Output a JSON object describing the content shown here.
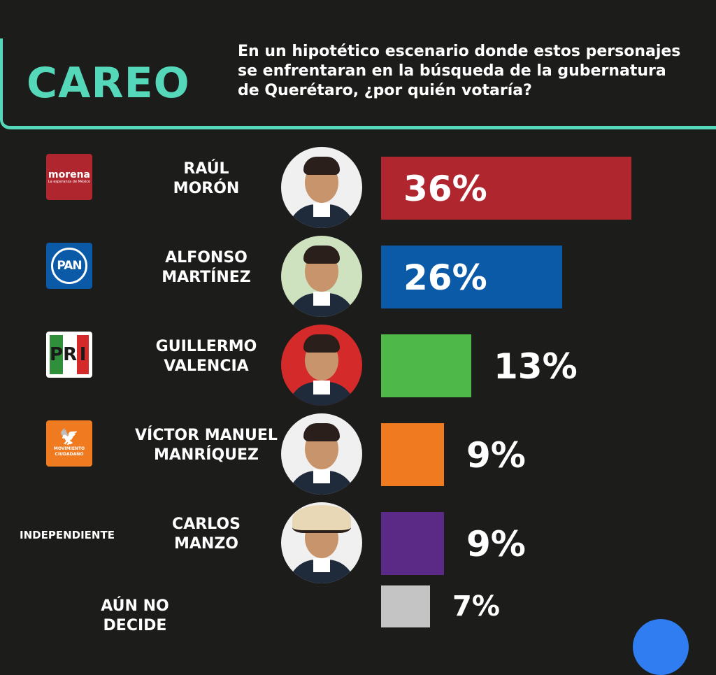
{
  "header": {
    "brand": "CAREO",
    "question": "En un hipotético escenario donde estos personajes se enfrentaran en la búsqueda de la gubernatura de Querétaro, ¿por quién votaría?"
  },
  "logos": {
    "morena_name": "morena",
    "morena_tagline": "La esperanza de México",
    "pan": "PAN",
    "pri_letters": [
      "P",
      "R",
      "I"
    ],
    "mc": "MOVIMIENTO CIUDADANO"
  },
  "chart_data": {
    "type": "bar",
    "orientation": "horizontal",
    "categories": [
      "RAÚL MORÓN",
      "ALFONSO MARTÍNEZ",
      "GUILLERMO VALENCIA",
      "VÍCTOR MANUEL MANRÍQUEZ",
      "CARLOS MANZO",
      "AÚN NO DECIDE"
    ],
    "values": [
      36,
      26,
      13,
      9,
      9,
      7
    ],
    "labels": [
      "36%",
      "26%",
      "13%",
      "9%",
      "9%",
      "7%"
    ],
    "name_lines": [
      [
        "RAÚL",
        "MORÓN"
      ],
      [
        "ALFONSO",
        "MARTÍNEZ"
      ],
      [
        "GUILLERMO",
        "VALENCIA"
      ],
      [
        "VÍCTOR MANUEL",
        "MANRÍQUEZ"
      ],
      [
        "CARLOS",
        "MANZO"
      ],
      [
        "AÚN NO",
        "DECIDE"
      ]
    ],
    "parties": [
      "MORENA",
      "PAN",
      "PRI",
      "MC",
      "INDEPENDIENTE",
      ""
    ],
    "party_labels": [
      "",
      "",
      "",
      "",
      "INDEPENDIENTE",
      ""
    ],
    "colors": [
      "#b0262f",
      "#0a5aa8",
      "#4eb848",
      "#f07a20",
      "#5b2a86",
      "#c4c4c4"
    ],
    "xlim": [
      0,
      36
    ],
    "grid": false
  }
}
